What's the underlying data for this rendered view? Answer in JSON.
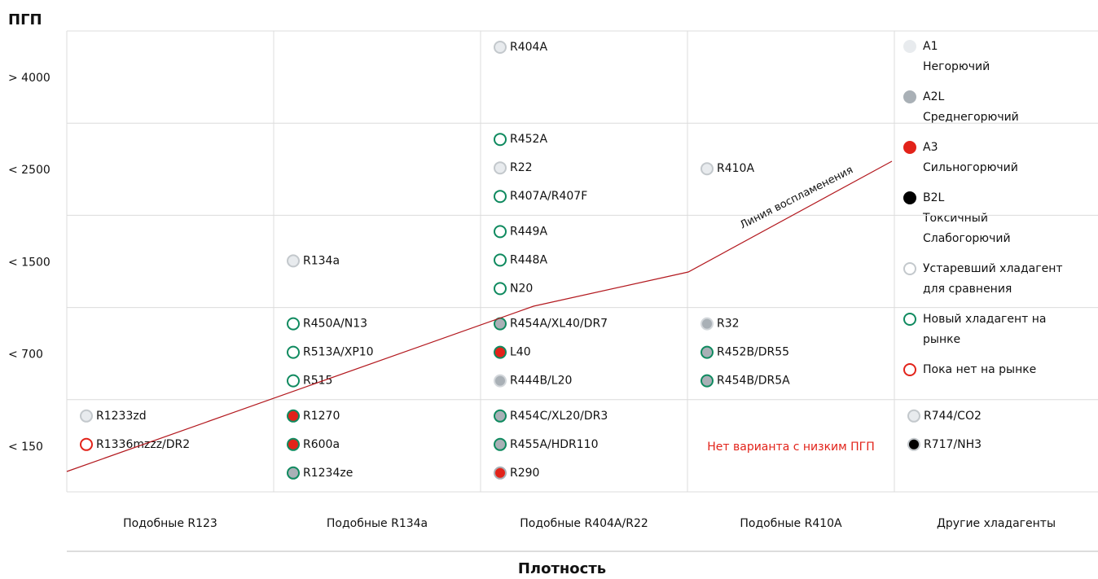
{
  "title": "ПГП",
  "x_axis_label": "Плотность",
  "flame_line_label": "Линия воспламенения",
  "columns": [
    "Подобные R123",
    "Подобные R134a",
    "Подобные R404A/R22",
    "Подобные R410A",
    "Другие хладагенты"
  ],
  "rows": [
    {
      "label": "> 4000",
      "cells": [
        {
          "items": []
        },
        {
          "items": []
        },
        {
          "items": [
            {
              "label": "R404A",
              "fill": "#e8ebee",
              "stroke": "#c3c8cc"
            }
          ]
        },
        {
          "items": []
        },
        null
      ]
    },
    {
      "label": "< 2500",
      "cells": [
        {
          "items": []
        },
        {
          "items": []
        },
        {
          "items": [
            {
              "label": "R452A",
              "fill": "#ffffff",
              "stroke": "#0f8a5f"
            },
            {
              "label": "R22",
              "fill": "#e8ebee",
              "stroke": "#c3c8cc"
            },
            {
              "label": "R407A/R407F",
              "fill": "#ffffff",
              "stroke": "#0f8a5f"
            }
          ]
        },
        {
          "items": [
            {
              "label": "R410A",
              "fill": "#e8ebee",
              "stroke": "#c3c8cc"
            }
          ]
        },
        null
      ]
    },
    {
      "label": "< 1500",
      "cells": [
        {
          "items": []
        },
        {
          "items": [
            {
              "label": "R134a",
              "fill": "#e8ebee",
              "stroke": "#c3c8cc"
            }
          ]
        },
        {
          "items": [
            {
              "label": "R449A",
              "fill": "#ffffff",
              "stroke": "#0f8a5f"
            },
            {
              "label": "R448A",
              "fill": "#ffffff",
              "stroke": "#0f8a5f"
            },
            {
              "label": "N20",
              "fill": "#ffffff",
              "stroke": "#0f8a5f"
            }
          ]
        },
        {
          "items": []
        },
        null
      ]
    },
    {
      "label": "< 700",
      "cells": [
        {
          "items": []
        },
        {
          "items": [
            {
              "label": "R450A/N13",
              "fill": "#ffffff",
              "stroke": "#0f8a5f"
            },
            {
              "label": "R513A/XP10",
              "fill": "#ffffff",
              "stroke": "#0f8a5f"
            },
            {
              "label": "R515",
              "fill": "#ffffff",
              "stroke": "#0f8a5f"
            }
          ]
        },
        {
          "items": [
            {
              "label": "R454A/XL40/DR7",
              "fill": "#a9b0b6",
              "stroke": "#0f8a5f"
            },
            {
              "label": "L40",
              "fill": "#e2231a",
              "stroke": "#0f8a5f"
            },
            {
              "label": "R444B/L20",
              "fill": "#a9b0b6",
              "stroke": "#d3d7db"
            }
          ]
        },
        {
          "items": [
            {
              "label": "R32",
              "fill": "#a9b0b6",
              "stroke": "#d3d7db"
            },
            {
              "label": "R452B/DR55",
              "fill": "#a9b0b6",
              "stroke": "#0f8a5f"
            },
            {
              "label": "R454B/DR5A",
              "fill": "#a9b0b6",
              "stroke": "#0f8a5f"
            }
          ]
        },
        null
      ]
    },
    {
      "label": "< 150",
      "cells": [
        {
          "items": [
            {
              "label": "R1233zd",
              "fill": "#e8ebee",
              "stroke": "#c3c8cc"
            },
            {
              "label": "R1336mzzz/DR2",
              "fill": "#ffffff",
              "stroke": "#e2231a"
            }
          ]
        },
        {
          "items": [
            {
              "label": "R1270",
              "fill": "#e2231a",
              "stroke": "#0f8a5f"
            },
            {
              "label": "R600a",
              "fill": "#e2231a",
              "stroke": "#0f8a5f"
            },
            {
              "label": "R1234ze",
              "fill": "#a9b0b6",
              "stroke": "#0f8a5f"
            }
          ]
        },
        {
          "items": [
            {
              "label": "R454C/XL20/DR3",
              "fill": "#a9b0b6",
              "stroke": "#0f8a5f"
            },
            {
              "label": "R455A/HDR110",
              "fill": "#a9b0b6",
              "stroke": "#0f8a5f"
            },
            {
              "label": "R290",
              "fill": "#e2231a",
              "stroke": "#a9b0b6"
            }
          ]
        },
        {
          "note": "Нет варианта с низким ПГП"
        },
        {
          "items": [
            {
              "label": "R744/CO2",
              "fill": "#e8ebee",
              "stroke": "#c3c8cc"
            },
            {
              "label": "R717/NH3",
              "fill": "#000000",
              "stroke": "#c3c8cc"
            }
          ]
        }
      ]
    }
  ],
  "legend": [
    {
      "lines": [
        "A1",
        "Негорючий"
      ],
      "fill": "#e8ebee",
      "stroke": "#e8ebee"
    },
    {
      "lines": [
        "A2L",
        "Среднегорючий"
      ],
      "fill": "#a9b0b6",
      "stroke": "#a9b0b6"
    },
    {
      "lines": [
        "A3",
        "Сильногорючий"
      ],
      "fill": "#e2231a",
      "stroke": "#e2231a"
    },
    {
      "lines": [
        "B2L",
        "Токсичный",
        "Слабогорючий"
      ],
      "fill": "#000000",
      "stroke": "#000000"
    },
    {
      "lines": [
        "Устаревший хладагент",
        "для сравнения"
      ],
      "fill": "#ffffff",
      "stroke": "#c3c8cc"
    },
    {
      "lines": [
        "Новый хладагент на",
        "рынке"
      ],
      "fill": "#ffffff",
      "stroke": "#0f8a5f"
    },
    {
      "lines": [
        "Пока нет на рынке"
      ],
      "fill": "#ffffff",
      "stroke": "#e2231a"
    }
  ]
}
